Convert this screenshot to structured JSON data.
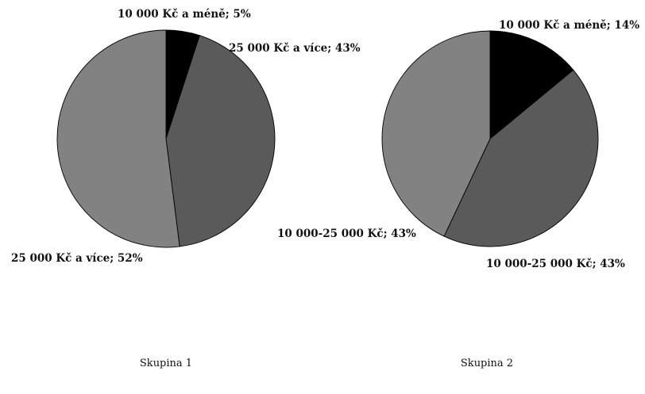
{
  "chart_data": [
    {
      "type": "pie",
      "title": "Skupina 1",
      "slices": [
        {
          "label": "10 000 Kč a méně; 5%",
          "value": 5,
          "color": "#000000"
        },
        {
          "label": "25 000 Kč a více; 43%",
          "value": 43,
          "color": "#5a5a5a"
        },
        {
          "label": "25 000 Kč a více; 52%",
          "value": 52,
          "color": "#828282"
        }
      ]
    },
    {
      "type": "pie",
      "title": "Skupina 2",
      "slices": [
        {
          "label": "10 000 Kč a méně; 14%",
          "value": 14,
          "color": "#000000"
        },
        {
          "label": "10 000-25 000 Kč; 43%",
          "value": 43,
          "color": "#5a5a5a"
        },
        {
          "label": "10 000-25 000 Kč; 43%",
          "value": 43,
          "color": "#828282"
        }
      ]
    }
  ]
}
